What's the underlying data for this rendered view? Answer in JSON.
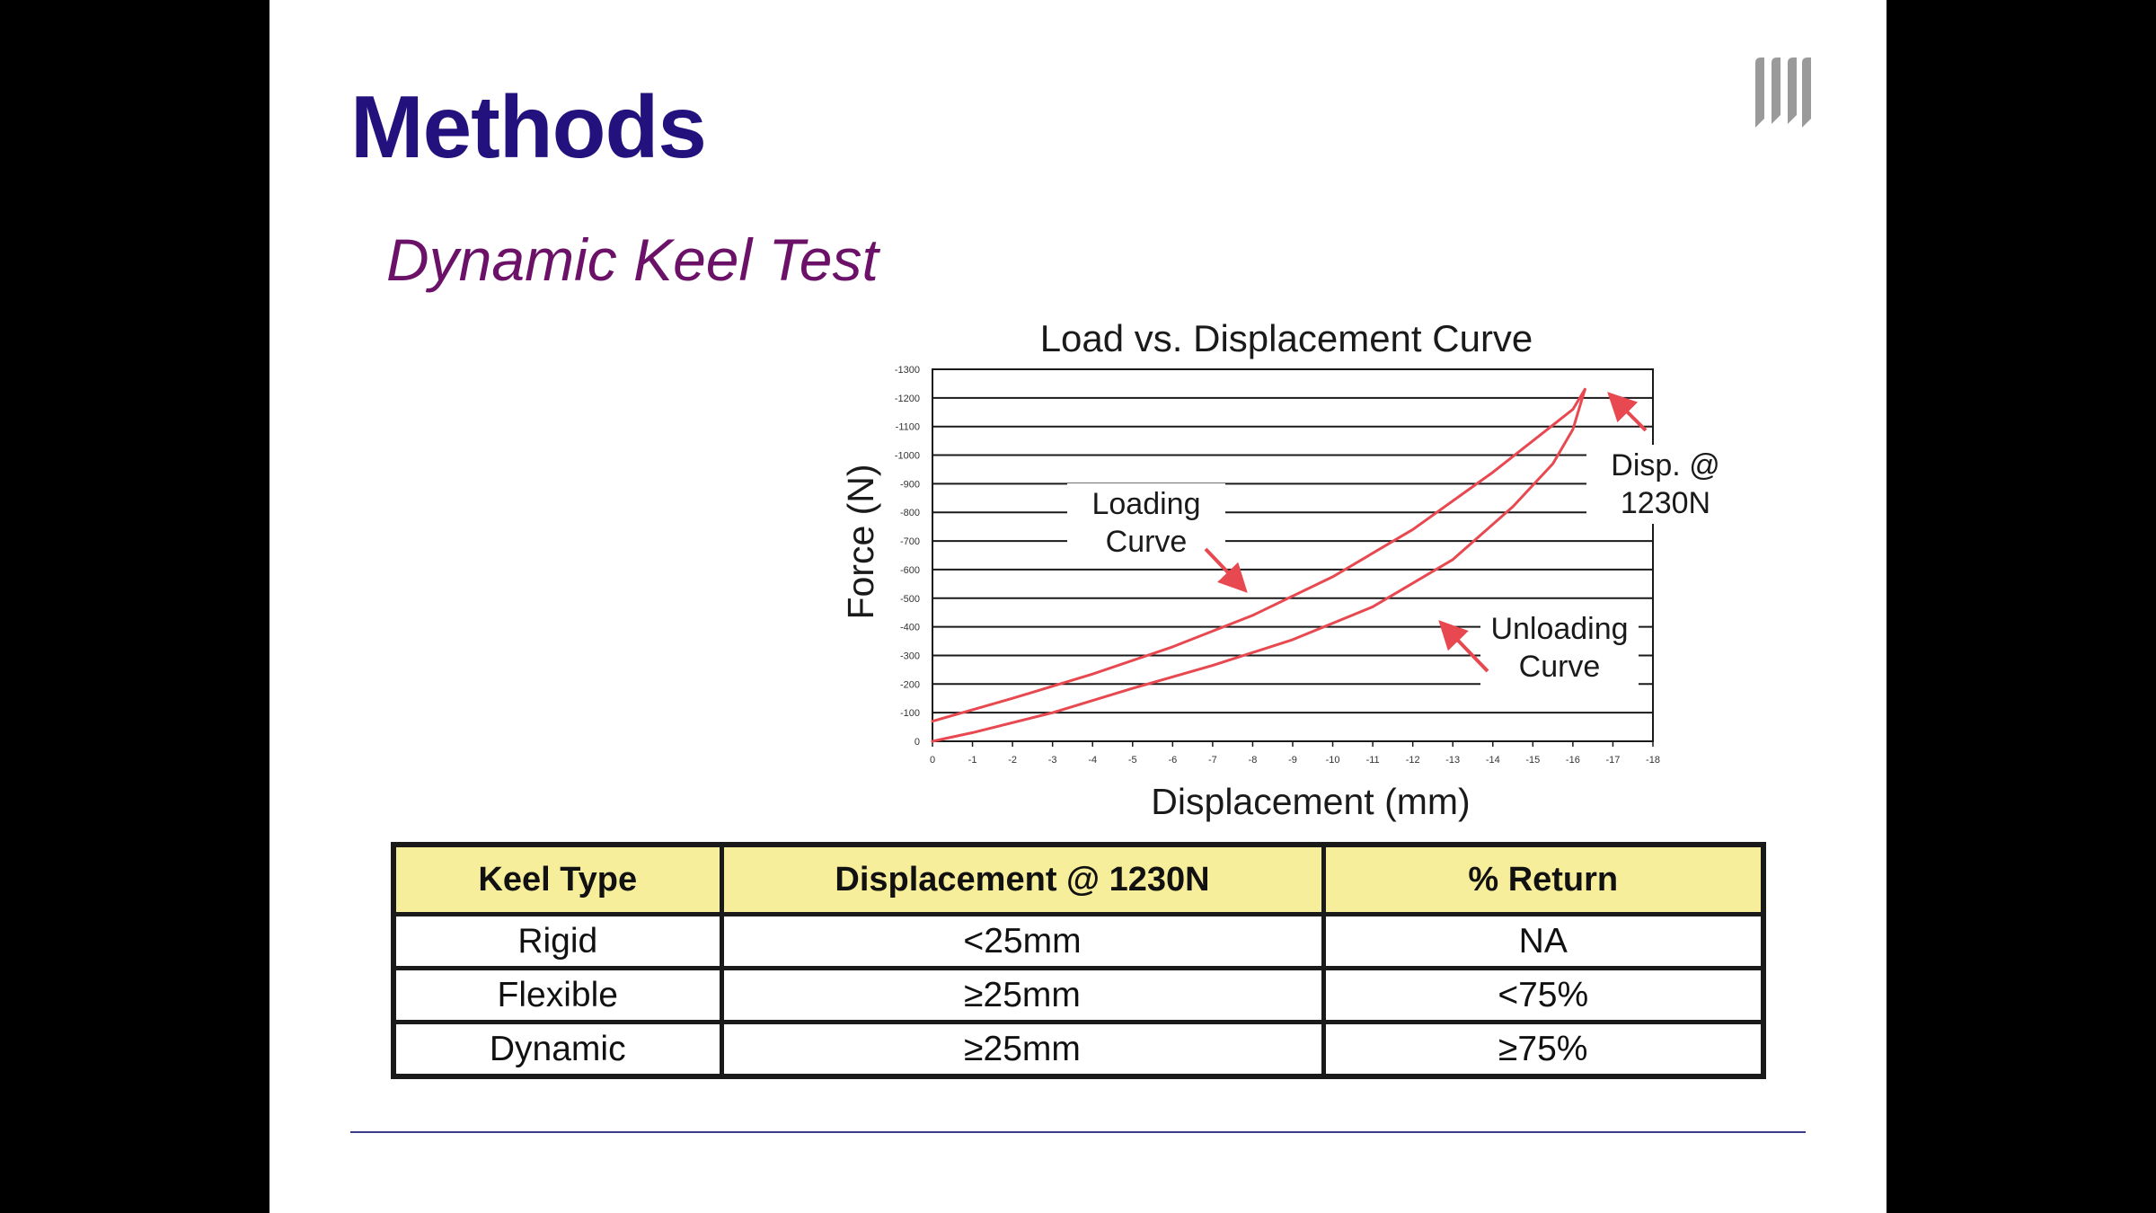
{
  "slide": {
    "title": "Methods",
    "subtitle": "Dynamic Keel Test"
  },
  "colors": {
    "title": "#23127e",
    "subtitle": "#6b1268",
    "curve": "#e8484f",
    "header_fill": "#f7ee9b",
    "background": "#000000"
  },
  "icons": {
    "logo": "university-pillars-logo"
  },
  "chart_data": {
    "type": "line",
    "title": "Load vs. Displacement Curve",
    "xlabel": "Displacement (mm)",
    "ylabel": "Force (N)",
    "x_ticks": [
      "0",
      "-1",
      "-2",
      "-3",
      "-4",
      "-5",
      "-6",
      "-7",
      "-8",
      "-9",
      "-10",
      "-11",
      "-12",
      "-13",
      "-14",
      "-15",
      "-16",
      "-17",
      "-18"
    ],
    "y_ticks": [
      "0",
      "-100",
      "-200",
      "-300",
      "-400",
      "-500",
      "-600",
      "-700",
      "-800",
      "-900",
      "-1000",
      "-1100",
      "-1200",
      "-1300"
    ],
    "xlim": [
      0,
      -18
    ],
    "ylim": [
      0,
      -1300
    ],
    "grid": "horizontal",
    "series": [
      {
        "name": "Loading Curve",
        "x": [
          0,
          -2,
          -4,
          -6,
          -8,
          -10,
          -12,
          -14,
          -16,
          -16.3
        ],
        "y": [
          -70,
          -150,
          -235,
          -330,
          -440,
          -575,
          -740,
          -940,
          -1160,
          -1230
        ]
      },
      {
        "name": "Unloading Curve",
        "x": [
          -16.3,
          -16.0,
          -15.5,
          -14.5,
          -13,
          -11,
          -9,
          -7,
          -5,
          -3,
          -1,
          0
        ],
        "y": [
          -1230,
          -1090,
          -970,
          -820,
          -635,
          -470,
          -355,
          -265,
          -185,
          -100,
          -30,
          0
        ]
      }
    ],
    "annotations": [
      {
        "line1": "Loading",
        "line2": "Curve"
      },
      {
        "line1": "Unloading",
        "line2": "Curve"
      },
      {
        "line1": "Disp. @",
        "line2": "1230N"
      }
    ]
  },
  "table": {
    "headers": [
      "Keel Type",
      "Displacement @ 1230N",
      "% Return"
    ],
    "rows": [
      [
        "Rigid",
        "<25mm",
        "NA"
      ],
      [
        "Flexible",
        "≥25mm",
        "<75%"
      ],
      [
        "Dynamic",
        "≥25mm",
        "≥75%"
      ]
    ]
  }
}
